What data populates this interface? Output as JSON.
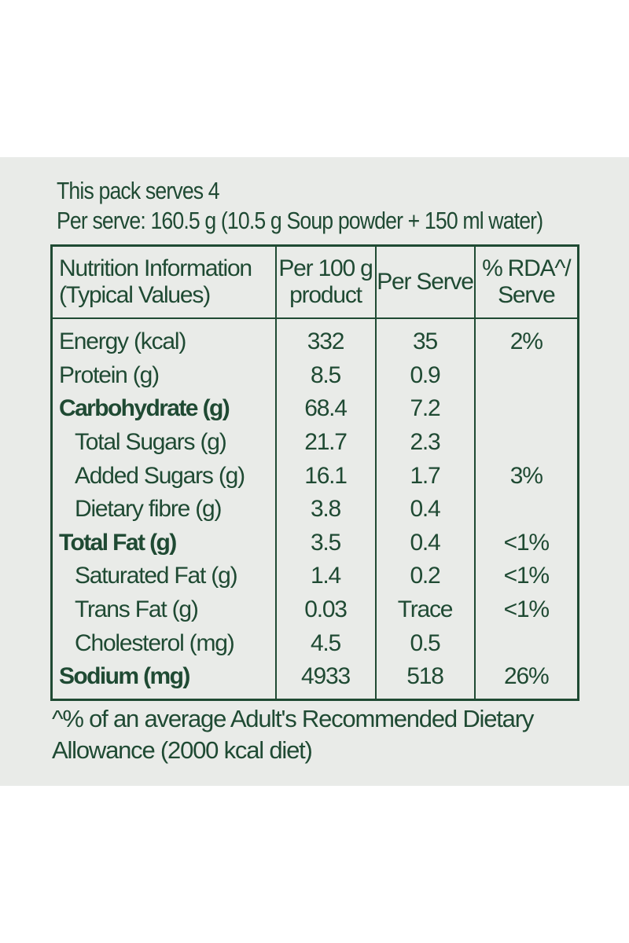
{
  "pack_info": {
    "serves_line": "This pack serves 4",
    "per_serve_line": "Per serve: 160.5 g (10.5 g Soup powder + 150 ml water)"
  },
  "table": {
    "headers": [
      {
        "line1": "Nutrition Information",
        "line2": "(Typical Values)"
      },
      {
        "line1": "Per 100 g",
        "line2": "product"
      },
      {
        "line1": "Per Serve",
        "line2": ""
      },
      {
        "line1": "% RDA^/",
        "line2": "Serve"
      }
    ],
    "rows": [
      {
        "name": "Energy (kcal)",
        "per100": "332",
        "perServe": "35",
        "rda": "2%",
        "style": "normal"
      },
      {
        "name": "Protein (g)",
        "per100": "8.5",
        "perServe": "0.9",
        "rda": "",
        "style": "normal"
      },
      {
        "name": "Carbohydrate (g)",
        "per100": "68.4",
        "perServe": "7.2",
        "rda": "",
        "style": "bold"
      },
      {
        "name": "Total Sugars (g)",
        "per100": "21.7",
        "perServe": "2.3",
        "rda": "",
        "style": "sub"
      },
      {
        "name": "Added Sugars (g)",
        "per100": "16.1",
        "perServe": "1.7",
        "rda": "3%",
        "style": "sub"
      },
      {
        "name": "Dietary fibre (g)",
        "per100": "3.8",
        "perServe": "0.4",
        "rda": "",
        "style": "sub"
      },
      {
        "name": "Total Fat (g)",
        "per100": "3.5",
        "perServe": "0.4",
        "rda": "<1%",
        "style": "bold"
      },
      {
        "name": "Saturated Fat (g)",
        "per100": "1.4",
        "perServe": "0.2",
        "rda": "<1%",
        "style": "sub"
      },
      {
        "name": "Trans Fat (g)",
        "per100": "0.03",
        "perServe": "Trace",
        "rda": "<1%",
        "style": "sub"
      },
      {
        "name": "Cholesterol (mg)",
        "per100": "4.5",
        "perServe": "0.5",
        "rda": "",
        "style": "sub"
      },
      {
        "name": "Sodium (mg)",
        "per100": "4933",
        "perServe": "518",
        "rda": "26%",
        "style": "bold"
      }
    ]
  },
  "footnote": {
    "line1": "^% of an average Adult's Recommended Dietary",
    "line2": "Allowance (2000 kcal diet)"
  },
  "colors": {
    "text": "#1f4a33",
    "panel_background": "#e9ebe8"
  }
}
